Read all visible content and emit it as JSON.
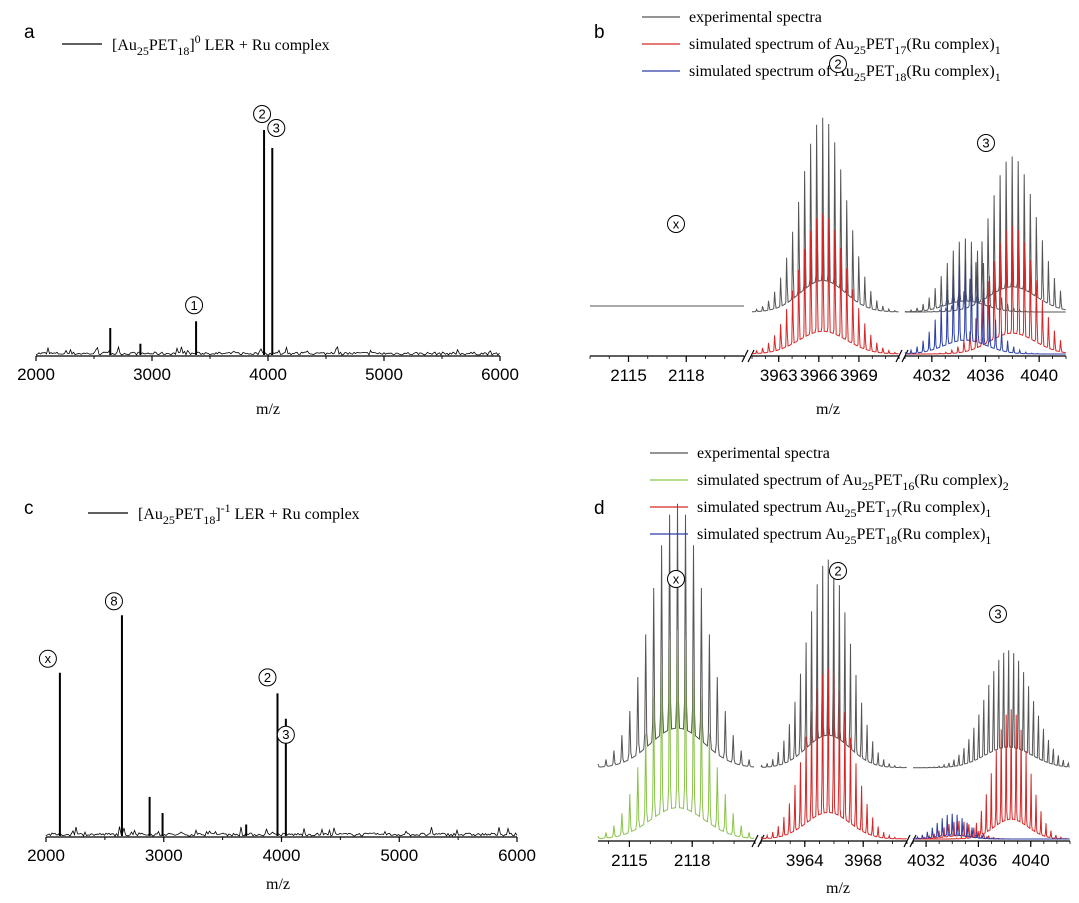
{
  "colors": {
    "experimental": "#555555",
    "red": "#d62728",
    "blue": "#2b3fa8",
    "green": "#8bc34a",
    "axis": "#000000"
  },
  "panels": {
    "a": {
      "label": "a",
      "legend_pre": "[Au",
      "legend_sub1": "25",
      "legend_mid": "PET",
      "legend_sub2": "18",
      "legend_post": "] LER + Ru complex",
      "legend_sup": "0",
      "xlabel": "m/z"
    },
    "b": {
      "label": "b",
      "xlabel": "m/z",
      "legend": [
        {
          "text": "experimental spectra"
        },
        {
          "pre": "simulated spectrum of Au",
          "s1": "25",
          "mid": "PET",
          "s2": "17",
          "post": "(Ru complex)",
          "s3": "1"
        },
        {
          "pre": "simulated spectrum of Au",
          "s1": "25",
          "mid": "PET",
          "s2": "18",
          "post": "(Ru complex)",
          "s3": "1"
        }
      ]
    },
    "c": {
      "label": "c",
      "legend_pre": "[Au",
      "legend_sub1": "25",
      "legend_mid": "PET",
      "legend_sub2": "18",
      "legend_post": "] LER + Ru complex",
      "legend_sup": "-1",
      "xlabel": "m/z"
    },
    "d": {
      "label": "d",
      "xlabel": "m/z",
      "legend": [
        {
          "text": "experimental spectra"
        },
        {
          "pre": "simulated spectrum of Au",
          "s1": "25",
          "mid": "PET",
          "s2": "16",
          "post": "(Ru complex)",
          "s3": "2"
        },
        {
          "pre": "simulated spectrum Au",
          "s1": "25",
          "mid": "PET",
          "s2": "17",
          "post": "(Ru complex)",
          "s3": "1"
        },
        {
          "pre": "simulated spectrum Au",
          "s1": "25",
          "mid": "PET",
          "s2": "18",
          "post": "(Ru complex)",
          "s3": "1"
        }
      ]
    }
  },
  "chart_data": [
    {
      "panel": "a",
      "type": "line",
      "xlabel": "m/z",
      "xlim": [
        2000,
        6000
      ],
      "xticks": [
        "2000",
        "3000",
        "4000",
        "5000",
        "6000"
      ],
      "series": [
        {
          "name": "[Au25PET18]0 LER + Ru complex",
          "color": "#000000"
        }
      ],
      "peaks": [
        {
          "x": 2640,
          "y": 0.12
        },
        {
          "x": 2900,
          "y": 0.05
        },
        {
          "x": 3380,
          "y": 0.15
        },
        {
          "x": 3966,
          "y": 1.0
        },
        {
          "x": 4037,
          "y": 0.92
        }
      ],
      "annotations": [
        {
          "symbol": "①",
          "x": 3380
        },
        {
          "symbol": "②",
          "x": 3966
        },
        {
          "symbol": "③",
          "x": 4037
        }
      ]
    },
    {
      "panel": "b",
      "type": "line",
      "xlabel": "m/z",
      "segments": [
        {
          "range": [
            2113,
            2121
          ],
          "ticks": [
            "2115",
            "2118"
          ],
          "tickvals": [
            2115,
            2118
          ]
        },
        {
          "range": [
            3961,
            3972
          ],
          "ticks": [
            "3963",
            "3966",
            "3969"
          ],
          "tickvals": [
            3963,
            3966,
            3969
          ]
        },
        {
          "range": [
            4030,
            4042
          ],
          "ticks": [
            "4032",
            "4036",
            "4040"
          ],
          "tickvals": [
            4032,
            4036,
            4040
          ]
        }
      ],
      "series": [
        {
          "name": "experimental spectra",
          "color": "#555555"
        },
        {
          "name": "simulated spectrum of Au25PET17(Ru complex)1",
          "color": "#d62728"
        },
        {
          "name": "simulated spectrum of Au25PET18(Ru complex)1",
          "color": "#2b3fa8"
        }
      ],
      "envelopes": [
        {
          "series": 0,
          "segment": 1,
          "center": 3966.3,
          "width": 1.7,
          "height": 1.0,
          "baseline": 0.2
        },
        {
          "series": 1,
          "segment": 1,
          "center": 3966.3,
          "width": 1.8,
          "height": 0.72,
          "baseline": 0.0
        },
        {
          "series": 0,
          "segment": 2,
          "center": 4038.0,
          "width": 1.8,
          "height": 0.8,
          "baseline": 0.2
        },
        {
          "series": 0,
          "segment": 2,
          "center": 4034.5,
          "width": 1.5,
          "height": 0.35,
          "baseline": 0.2
        },
        {
          "series": 1,
          "segment": 2,
          "center": 4038.0,
          "width": 1.7,
          "height": 0.66,
          "baseline": 0.0
        },
        {
          "series": 2,
          "segment": 2,
          "center": 4034.5,
          "width": 1.6,
          "height": 0.44,
          "baseline": 0.0
        }
      ],
      "annotations": [
        {
          "symbol": "ⓧ"
        },
        {
          "symbol": "②"
        },
        {
          "symbol": "③"
        }
      ]
    },
    {
      "panel": "c",
      "type": "line",
      "xlabel": "m/z",
      "xlim": [
        2000,
        6000
      ],
      "xticks": [
        "2000",
        "3000",
        "4000",
        "5000",
        "6000"
      ],
      "series": [
        {
          "name": "[Au25PET18]-1 LER + Ru complex",
          "color": "#000000"
        }
      ],
      "peaks": [
        {
          "x": 2118,
          "y": 0.71
        },
        {
          "x": 2645,
          "y": 0.96
        },
        {
          "x": 2880,
          "y": 0.17
        },
        {
          "x": 2990,
          "y": 0.1
        },
        {
          "x": 3700,
          "y": 0.05
        },
        {
          "x": 3966,
          "y": 0.62
        },
        {
          "x": 4037,
          "y": 0.51
        }
      ],
      "annotations": [
        {
          "symbol": "ⓧ",
          "x": 2118
        },
        {
          "symbol": "⑧",
          "x": 2645
        },
        {
          "symbol": "②",
          "x": 3966
        },
        {
          "symbol": "③",
          "x": 4037
        }
      ]
    },
    {
      "panel": "d",
      "type": "line",
      "xlabel": "m/z",
      "segments": [
        {
          "range": [
            2113.5,
            2121
          ],
          "ticks": [
            "2115",
            "2118"
          ],
          "tickvals": [
            2115,
            2118
          ]
        },
        {
          "range": [
            3961,
            3971
          ],
          "ticks": [
            "3964",
            "3968"
          ],
          "tickvals": [
            3964,
            3968
          ]
        },
        {
          "range": [
            4031,
            4043
          ],
          "ticks": [
            "4032",
            "4036",
            "4040"
          ],
          "tickvals": [
            4032,
            4036,
            4040
          ]
        }
      ],
      "series": [
        {
          "name": "experimental spectra",
          "color": "#555555"
        },
        {
          "name": "simulated spectrum of Au25PET16(Ru complex)2",
          "color": "#8bc34a"
        },
        {
          "name": "simulated spectrum Au25PET17(Ru complex)1",
          "color": "#d62728"
        },
        {
          "name": "simulated spectrum Au25PET18(Ru complex)1",
          "color": "#2b3fa8"
        }
      ],
      "envelopes": [
        {
          "series": 0,
          "segment": 0,
          "center": 2117.3,
          "width": 1.3,
          "height": 1.0,
          "baseline": 0.27
        },
        {
          "series": 1,
          "segment": 0,
          "center": 2117.3,
          "width": 1.3,
          "height": 0.79,
          "baseline": 0.0
        },
        {
          "series": 0,
          "segment": 1,
          "center": 3965.6,
          "width": 1.5,
          "height": 0.82,
          "baseline": 0.27
        },
        {
          "series": 2,
          "segment": 1,
          "center": 3965.6,
          "width": 1.5,
          "height": 0.67,
          "baseline": 0.0
        },
        {
          "series": 0,
          "segment": 2,
          "center": 4038.3,
          "width": 1.8,
          "height": 0.52,
          "baseline": 0.27
        },
        {
          "series": 2,
          "segment": 2,
          "center": 4038.5,
          "width": 1.3,
          "height": 0.5,
          "baseline": 0.0
        },
        {
          "series": 2,
          "segment": 2,
          "center": 4034.5,
          "width": 1.2,
          "height": 0.08,
          "baseline": 0.0
        },
        {
          "series": 3,
          "segment": 2,
          "center": 4034.0,
          "width": 1.2,
          "height": 0.1,
          "baseline": 0.0
        }
      ],
      "annotations": [
        {
          "symbol": "ⓧ"
        },
        {
          "symbol": "②"
        },
        {
          "symbol": "③"
        }
      ]
    }
  ]
}
